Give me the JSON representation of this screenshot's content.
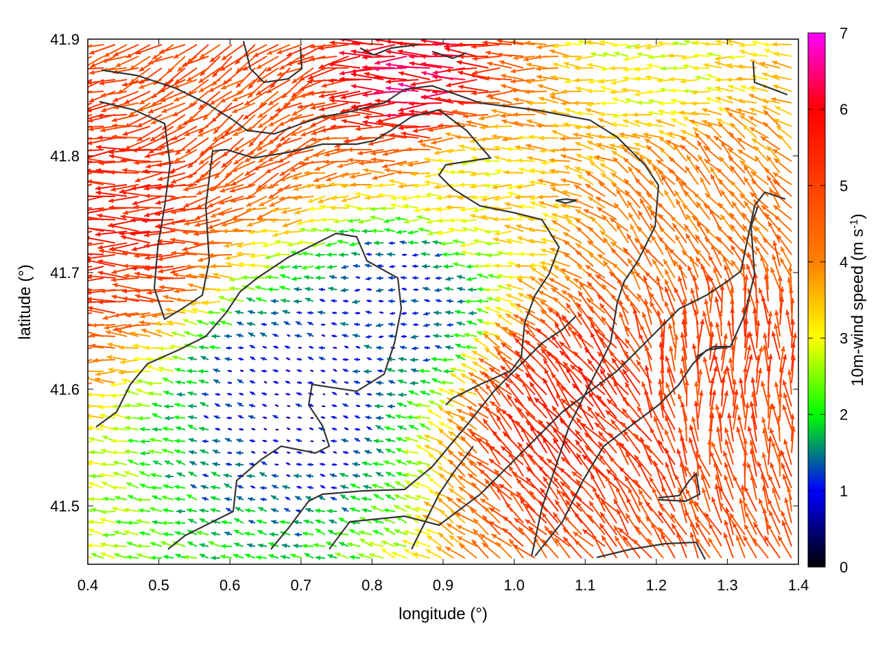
{
  "chart_data": {
    "type": "vector-field-map",
    "xlabel": "longitude (°)",
    "ylabel": "latitude (°)",
    "xlim": [
      0.4,
      1.4
    ],
    "ylim": [
      41.45,
      41.9
    ],
    "x_ticks": [
      "0.4",
      "0.5",
      "0.6",
      "0.7",
      "0.8",
      "0.9",
      "1.0",
      "1.1",
      "1.2",
      "1.3",
      "1.4"
    ],
    "y_ticks": [
      "41.5",
      "41.6",
      "41.7",
      "41.8",
      "41.9"
    ],
    "colorbar": {
      "label_prefix": "10m-wind speed (m s",
      "label_exponent": "-1",
      "label_suffix": ")",
      "range": [
        0,
        7
      ],
      "ticks": [
        "0",
        "1",
        "2",
        "3",
        "4",
        "5",
        "6",
        "7"
      ],
      "colors": [
        "#000000",
        "#0000ff",
        "#00ff00",
        "#ffff00",
        "#ff8000",
        "#ff0000",
        "#ff00ff"
      ]
    },
    "wind_field_regions": [
      {
        "lon": 0.45,
        "lat": 41.75,
        "speed": 5.5,
        "direction": "west"
      },
      {
        "lon": 0.62,
        "lat": 41.84,
        "speed": 4.8,
        "direction": "south-west"
      },
      {
        "lon": 0.88,
        "lat": 41.86,
        "speed": 6.2,
        "direction": "west"
      },
      {
        "lon": 0.7,
        "lat": 41.6,
        "speed": 0.8,
        "direction": "variable"
      },
      {
        "lon": 0.85,
        "lat": 41.68,
        "speed": 1.0,
        "direction": "west"
      },
      {
        "lon": 1.08,
        "lat": 41.58,
        "speed": 5.5,
        "direction": "north-west"
      },
      {
        "lon": 1.3,
        "lat": 41.62,
        "speed": 5.0,
        "direction": "north"
      },
      {
        "lon": 1.25,
        "lat": 41.75,
        "speed": 4.2,
        "direction": "north-west"
      },
      {
        "lon": 0.95,
        "lat": 41.78,
        "speed": 3.2,
        "direction": "west"
      },
      {
        "lon": 1.2,
        "lat": 41.88,
        "speed": 3.0,
        "direction": "west"
      }
    ]
  }
}
